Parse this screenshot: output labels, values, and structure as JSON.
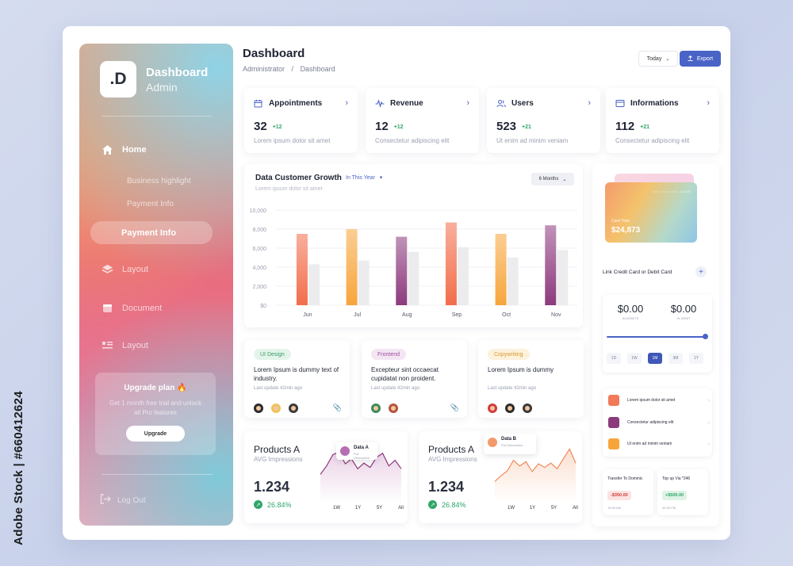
{
  "watermark": "Adobe Stock | #660412624",
  "sidebar": {
    "logo": ".D",
    "title": "Dashboard",
    "subtitle": "Admin",
    "home_label": "Home",
    "sub_items": [
      "Business highlight",
      "Payment Info"
    ],
    "active_label": "Payment Info",
    "items": [
      {
        "label": "Layout",
        "icon": "layers-icon"
      },
      {
        "label": "Document",
        "icon": "document-icon"
      },
      {
        "label": "Layout",
        "icon": "table-icon"
      }
    ],
    "upgrade": {
      "title": "Upgrade plan",
      "emoji": "🔥",
      "desc": "Get 1 month free trial and unlock all Pro features",
      "button": "Upgrade"
    },
    "logout": "Log Out"
  },
  "header": {
    "title": "Dashboard",
    "breadcrumb": [
      "Administrator",
      "Dashboard"
    ],
    "today_label": "Today",
    "export_label": "Export"
  },
  "stats": [
    {
      "title": "Appointments",
      "value": "32",
      "delta": "+12",
      "desc": "Lorem ipsum dolor sit amet",
      "icon": "calendar-icon"
    },
    {
      "title": "Revenue",
      "value": "12",
      "delta": "+12",
      "desc": "Consectetur adipiscing elit",
      "icon": "pulse-icon"
    },
    {
      "title": "Users",
      "value": "523",
      "delta": "+21",
      "desc": "Ut enim ad minim veniam",
      "icon": "users-icon"
    },
    {
      "title": "Informations",
      "value": "112",
      "delta": "+21",
      "desc": "Consectetur adipiscing elit",
      "icon": "info-icon"
    }
  ],
  "growth": {
    "title": "Data Customer Growth",
    "filter": "In This Year",
    "subtitle": "Lorem ipsum dolor sit amet",
    "range_button": "6 Months"
  },
  "chart_data": {
    "type": "bar",
    "categories": [
      "Jun",
      "Jul",
      "Aug",
      "Sep",
      "Oct",
      "Nov"
    ],
    "series": [
      {
        "values": [
          7500,
          8000,
          7200,
          8700,
          7500,
          8400
        ],
        "colors": [
          "#f26d4b",
          "#f7a53b",
          "#8d3a7d",
          "#f26d4b",
          "#f7a53b",
          "#8d3a7d"
        ]
      },
      {
        "values": [
          4300,
          4700,
          5600,
          6100,
          5000,
          5800
        ],
        "colors": [
          "#e4e4e6",
          "#e4e4e6",
          "#e4e4e6",
          "#e4e4e6",
          "#e4e4e6",
          "#e4e4e6"
        ]
      }
    ],
    "yticks": [
      "$0",
      "2,000",
      "4,000",
      "6,000",
      "8,000",
      "10,000"
    ],
    "ylim": [
      0,
      10000
    ]
  },
  "tasks": [
    {
      "tag": "UI Design",
      "tag_bg": "#e3f5ea",
      "tag_color": "#3a9a62",
      "title": "Lorem Ipsum is dummy text of  industry.",
      "meta": "Last update 42min ago",
      "avatars": [
        "#2b2b2b",
        "#f0c35a",
        "#3a3a3a"
      ]
    },
    {
      "tag": "Frontend",
      "tag_bg": "#f3e6f3",
      "tag_color": "#a04c9c",
      "title": "Excepteur sint occaecat cupidatat non proident.",
      "meta": "Last update 42min ago",
      "avatars": [
        "#3c8a5a",
        "#b5533c"
      ]
    },
    {
      "tag": "Copywriting",
      "tag_bg": "#fdf1dc",
      "tag_color": "#d69a2c",
      "title": "Lorem Ipsum is dummy",
      "meta": "Last update 42min ago",
      "avatars": [
        "#d23c3c",
        "#2b2b2b",
        "#3a3a3a"
      ]
    }
  ],
  "products": [
    {
      "title": "Products A",
      "subtitle": "AVG Impressions",
      "value": "1.234",
      "pct": "26.84%",
      "tip_title": "Data A",
      "tip_desc": "Put Description",
      "tip_color": "#b66fb3",
      "tabs": [
        "1W",
        "1Y",
        "5Y",
        "All"
      ],
      "line": [
        40,
        52,
        68,
        72,
        55,
        62,
        48,
        56,
        50,
        64,
        70,
        52,
        60,
        48
      ],
      "stroke": "#8d3a7d",
      "fill": "#e9cde4"
    },
    {
      "title": "Products A",
      "subtitle": "AVG Impressions",
      "value": "1.234",
      "pct": "26.84%",
      "tip_title": "Data B",
      "tip_desc": "Put Description",
      "tip_color": "#f29a6a",
      "tabs": [
        "1W",
        "1Y",
        "5Y",
        "All"
      ],
      "line": [
        30,
        38,
        45,
        60,
        52,
        58,
        44,
        55,
        50,
        56,
        48,
        62,
        76,
        56
      ],
      "stroke": "#f08a5a",
      "fill": "#fbdccb"
    }
  ],
  "wallet": {
    "card_label": "Card Total",
    "card_value": "$24,873",
    "card_number": "•••• •••• •••• 2435",
    "link_card": "Link Credit Card or Debit Card",
    "assets_value": "$0.00",
    "assets_label": "IN ASSETS",
    "debit_value": "$0.00",
    "debit_label": "IN DEBIT",
    "slider": 1.0,
    "periods": [
      "1D",
      "1W",
      "1M",
      "3M",
      "1Y"
    ],
    "active_period": "1M",
    "list": [
      {
        "text": "Lorem ipsum dolor sit amet",
        "color": "#f07a5a"
      },
      {
        "text": "Consectetur adipiscing elit",
        "color": "#8d3a7d"
      },
      {
        "text": "Ut enim ad minim veniam",
        "color": "#f7a53b"
      }
    ],
    "transfers": [
      {
        "title": "Transfer To Dominic",
        "amount": "-$350.00",
        "bg": "#fde3e3",
        "color": "#d23c3c",
        "time": "10:45 AM"
      },
      {
        "title": "Top up Via *246",
        "amount": "+$500.00",
        "bg": "#dff3e6",
        "color": "#2fa66a",
        "time": "09:30 PM"
      }
    ]
  }
}
